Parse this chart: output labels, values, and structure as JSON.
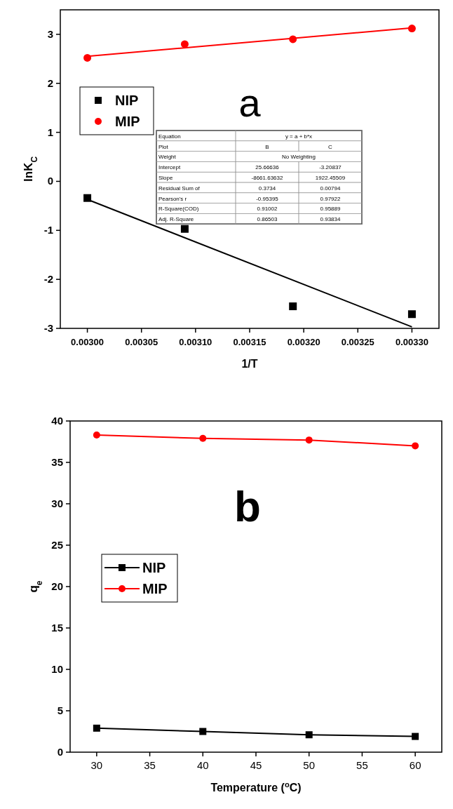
{
  "chart_data": [
    {
      "type": "scatter",
      "xlabel": "1/T",
      "ylabel": "lnK$_{C}$",
      "xlim": [
        0.002975,
        0.003325
      ],
      "ylim": [
        -3,
        3.5
      ],
      "xticks": [
        {
          "value": 0.003,
          "label": "0.00300"
        },
        {
          "value": 0.00305,
          "label": "0.00305"
        },
        {
          "value": 0.0031,
          "label": "0.00310"
        },
        {
          "value": 0.00315,
          "label": "0.00315"
        },
        {
          "value": 0.0032,
          "label": "0.00320"
        },
        {
          "value": 0.00325,
          "label": "0.00325"
        },
        {
          "value": 0.0033,
          "label": "0.00330"
        }
      ],
      "yticks": [
        -3,
        -2,
        -1,
        0,
        1,
        2,
        3
      ],
      "legend": "top left",
      "grid": false,
      "series": [
        {
          "name": "NIP",
          "type": "scatter",
          "marker": "square",
          "color": "#000000",
          "x": [
            0.003,
            0.00309,
            0.00319,
            0.0033
          ],
          "values": [
            -0.34,
            -0.97,
            -2.55,
            -2.71
          ]
        },
        {
          "name": "MIP",
          "type": "scatter",
          "marker": "circle",
          "color": "#ff0000",
          "x": [
            0.003,
            0.00309,
            0.00319,
            0.0033
          ],
          "values": [
            2.52,
            2.8,
            2.9,
            3.12
          ]
        },
        {
          "type": "line",
          "color": "#000000",
          "x": [
            0.003,
            0.0033
          ],
          "values": [
            -0.37,
            -2.97
          ]
        },
        {
          "type": "line",
          "color": "#ff0000",
          "x": [
            0.003,
            0.0033
          ],
          "values": [
            2.55,
            3.13
          ]
        }
      ],
      "annotations": [
        "a",
        "Equation",
        "y = a + b*x",
        "Plot",
        "B",
        "C",
        "Weight",
        "No Weighting",
        "Intercept",
        "25.66636",
        "-3.20837",
        "Slope",
        "-8661.63632",
        "1922.45509",
        "Residual Sum of",
        "0.3734",
        "0.00794",
        "Pearson's r",
        "-0.95395",
        "0.97922",
        "R-Square(COD)",
        "0.91002",
        "0.95889",
        "Adj. R-Square",
        "0.86503",
        "0.93834"
      ]
    },
    {
      "type": "line",
      "xlabel": "Temperature ($^{o}$C)",
      "ylabel": "q$_{e}$",
      "xlim": [
        27.5,
        62.5
      ],
      "ylim": [
        0,
        40
      ],
      "xticks": [
        30,
        35,
        40,
        45,
        50,
        55,
        60
      ],
      "yticks": [
        0,
        5,
        10,
        15,
        20,
        25,
        30,
        35,
        40
      ],
      "legend": "left",
      "grid": false,
      "line_style": "solid",
      "x": [
        30,
        40,
        50,
        60
      ],
      "series": [
        {
          "name": "NIP",
          "marker": "square",
          "color": "#000000",
          "values": [
            2.9,
            2.5,
            2.1,
            1.9
          ]
        },
        {
          "name": "MIP",
          "marker": "circle",
          "color": "#ff0000",
          "values": [
            38.3,
            37.9,
            37.7,
            37.0
          ]
        }
      ],
      "annotations": [
        "b"
      ]
    }
  ]
}
